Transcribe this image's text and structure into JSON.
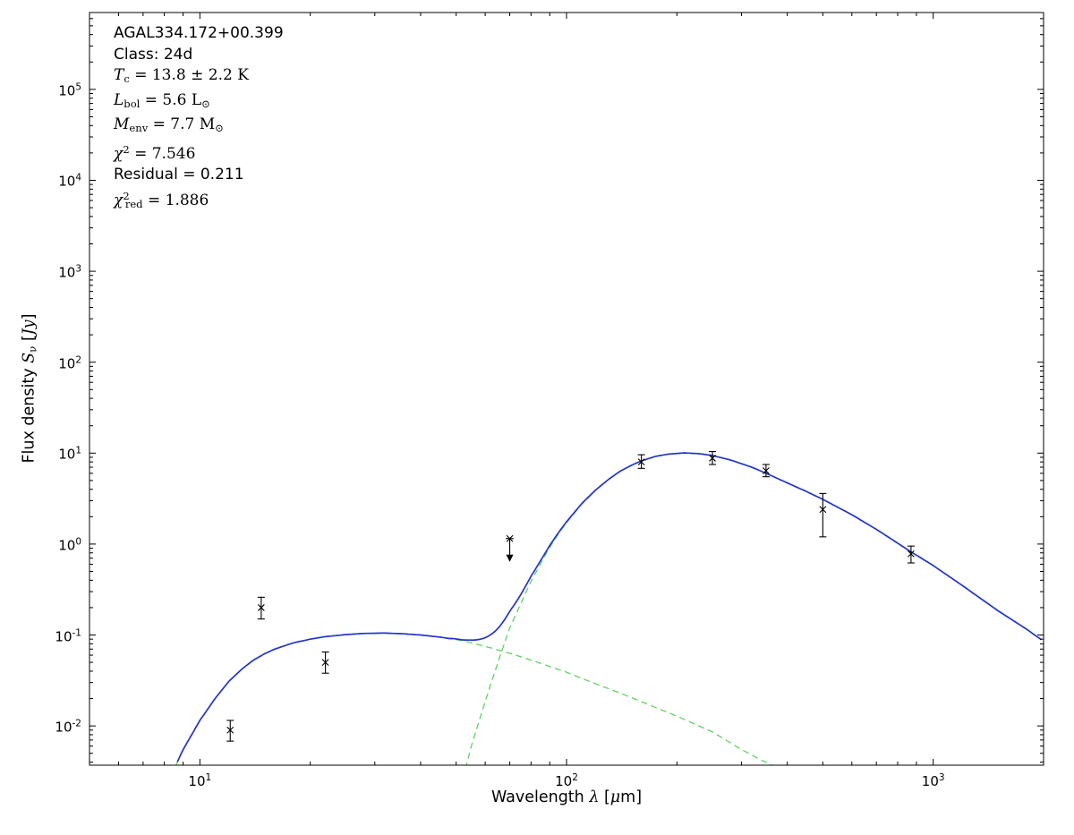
{
  "figure": {
    "background": "#ffffff",
    "axis_color": "#000000"
  },
  "chart_data": {
    "type": "line",
    "title": "",
    "xscale": "log",
    "yscale": "log",
    "xlim": [
      5,
      2000
    ],
    "ylim": [
      0.0037,
      700000
    ],
    "x_major_ticks": [
      10,
      100,
      1000
    ],
    "y_major_ticks": [
      0.01,
      0.1,
      1,
      10,
      100,
      1000,
      10000,
      100000
    ],
    "grid": false,
    "legend": "none",
    "xlabel_parts": [
      [
        "r",
        "Wavelength "
      ],
      [
        "m",
        "λ"
      ],
      [
        "r",
        " ["
      ],
      [
        "m",
        "μ"
      ],
      [
        "r",
        "m]"
      ]
    ],
    "ylabel_parts": [
      [
        "r",
        "Flux density "
      ],
      [
        "m",
        "S"
      ],
      [
        "sub",
        "ν"
      ],
      [
        "r",
        " ["
      ],
      [
        "m",
        "Jy"
      ],
      [
        "r",
        "]"
      ]
    ],
    "annotation_lines": [
      [
        [
          "r",
          "AGAL334.172+00.399"
        ]
      ],
      [
        [
          "r",
          "Class: 24d"
        ]
      ],
      [
        [
          "m",
          "T"
        ],
        [
          "sub",
          "c"
        ],
        [
          "s",
          " = 13.8 ± 2.2 K"
        ]
      ],
      [
        [
          "m",
          "L"
        ],
        [
          "sub",
          "bol"
        ],
        [
          "s",
          " = 5.6 L"
        ],
        [
          "sub",
          "⊙"
        ]
      ],
      [
        [
          "m",
          "M"
        ],
        [
          "sub",
          "env"
        ],
        [
          "s",
          " = 7.7 M"
        ],
        [
          "sub",
          "⊙"
        ]
      ],
      [
        [
          "m",
          "χ"
        ],
        [
          "sup",
          "2"
        ],
        [
          "s",
          " = 7.546"
        ]
      ],
      [
        [
          "r",
          "Residual = 0.211"
        ]
      ],
      [
        [
          "m",
          "χ"
        ],
        [
          "sup",
          "2"
        ],
        [
          "subtuck",
          "red"
        ],
        [
          "s",
          " = 1.886"
        ]
      ]
    ],
    "series": [
      {
        "name": "model-total",
        "role": "sum",
        "color": "#2334cc",
        "style": "solid",
        "width": 1.7
      },
      {
        "name": "warm-component",
        "role": "component",
        "color": "#5fd35f",
        "style": "dashed",
        "width": 1.3,
        "points": [
          [
            8.6,
            0.0037
          ],
          [
            9,
            0.0055
          ],
          [
            9.5,
            0.008
          ],
          [
            10,
            0.0115
          ],
          [
            11,
            0.02
          ],
          [
            12,
            0.031
          ],
          [
            13,
            0.042
          ],
          [
            14,
            0.053
          ],
          [
            15,
            0.062
          ],
          [
            16,
            0.07
          ],
          [
            18,
            0.082
          ],
          [
            20,
            0.09
          ],
          [
            22,
            0.096
          ],
          [
            25,
            0.101
          ],
          [
            28,
            0.104
          ],
          [
            32,
            0.105
          ],
          [
            36,
            0.103
          ],
          [
            40,
            0.1
          ],
          [
            45,
            0.095
          ],
          [
            50,
            0.089
          ],
          [
            55,
            0.082
          ],
          [
            60,
            0.075
          ],
          [
            70,
            0.063
          ],
          [
            80,
            0.053
          ],
          [
            90,
            0.045
          ],
          [
            100,
            0.039
          ],
          [
            120,
            0.029
          ],
          [
            140,
            0.023
          ],
          [
            160,
            0.0185
          ],
          [
            200,
            0.0128
          ],
          [
            250,
            0.0086
          ],
          [
            300,
            0.0055
          ],
          [
            340,
            0.0042
          ],
          [
            400,
            0.0031
          ],
          [
            500,
            0.0022
          ],
          [
            700,
            0.00125
          ],
          [
            1000,
            0.0008
          ],
          [
            1500,
            0.00045
          ],
          [
            2000,
            0.0003
          ]
        ]
      },
      {
        "name": "cold-component",
        "role": "component",
        "color": "#5fd35f",
        "style": "dashed",
        "width": 1.3,
        "points": [
          [
            48,
            0.0008
          ],
          [
            52,
            0.0025
          ],
          [
            55,
            0.006
          ],
          [
            58,
            0.012
          ],
          [
            62,
            0.028
          ],
          [
            66,
            0.06
          ],
          [
            70,
            0.12
          ],
          [
            75,
            0.22
          ],
          [
            80,
            0.39
          ],
          [
            85,
            0.61
          ],
          [
            90,
            0.92
          ],
          [
            95,
            1.29
          ],
          [
            100,
            1.72
          ],
          [
            110,
            2.75
          ],
          [
            120,
            3.9
          ],
          [
            130,
            5.1
          ],
          [
            140,
            6.3
          ],
          [
            150,
            7.3
          ],
          [
            160,
            8.2
          ],
          [
            175,
            9.2
          ],
          [
            190,
            9.75
          ],
          [
            210,
            10.05
          ],
          [
            230,
            9.85
          ],
          [
            250,
            9.4
          ],
          [
            280,
            8.4
          ],
          [
            320,
            7.0
          ],
          [
            350,
            6.0
          ],
          [
            400,
            4.7
          ],
          [
            450,
            3.8
          ],
          [
            500,
            3.1
          ],
          [
            600,
            2.1
          ],
          [
            700,
            1.45
          ],
          [
            870,
            0.82
          ],
          [
            1000,
            0.58
          ],
          [
            1200,
            0.35
          ],
          [
            1500,
            0.185
          ],
          [
            1800,
            0.115
          ],
          [
            2000,
            0.085
          ]
        ]
      }
    ],
    "data_points": [
      {
        "x": 12.1,
        "y": 0.009,
        "ylo": 0.0068,
        "yhi": 0.0115
      },
      {
        "x": 14.7,
        "y": 0.2,
        "ylo": 0.15,
        "yhi": 0.26
      },
      {
        "x": 22,
        "y": 0.05,
        "ylo": 0.038,
        "yhi": 0.065
      },
      {
        "x": 70,
        "y": 1.15,
        "upper_limit": true
      },
      {
        "x": 160,
        "y": 8.0,
        "ylo": 6.8,
        "yhi": 9.6
      },
      {
        "x": 250,
        "y": 8.8,
        "ylo": 7.5,
        "yhi": 10.4
      },
      {
        "x": 350,
        "y": 6.4,
        "ylo": 5.5,
        "yhi": 7.5
      },
      {
        "x": 500,
        "y": 2.4,
        "ylo": 1.2,
        "yhi": 3.6
      },
      {
        "x": 870,
        "y": 0.78,
        "ylo": 0.62,
        "yhi": 0.95
      }
    ],
    "marker": {
      "type": "x",
      "color": "#000000",
      "size": 7
    }
  }
}
